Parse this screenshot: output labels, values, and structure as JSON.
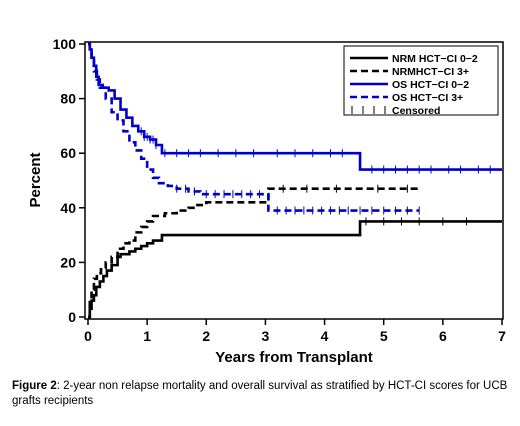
{
  "chart_data": {
    "type": "line",
    "xlabel": "Years from Transplant",
    "ylabel": "Percent",
    "xlim": [
      0,
      7
    ],
    "ylim": [
      0,
      100
    ],
    "xticks": [
      "0",
      "1",
      "2",
      "3",
      "4",
      "5",
      "6",
      "7"
    ],
    "yticks": [
      "0",
      "20",
      "40",
      "60",
      "80",
      "100"
    ],
    "grid": false,
    "legend_position": "top-right",
    "legend": [
      {
        "label": "NRM HCT−CI 0−2",
        "color": "#000000",
        "dash": "solid"
      },
      {
        "label": "NRMHCT−CI 3+",
        "color": "#000000",
        "dash": "dashed"
      },
      {
        "label": "OS HCT−CI 0−2",
        "color": "#0000cc",
        "dash": "solid"
      },
      {
        "label": "OS HCT−CI 3+",
        "color": "#0000cc",
        "dash": "dashed"
      },
      {
        "label": "Censored",
        "color": "#000000",
        "dash": "ticks"
      }
    ],
    "series": [
      {
        "name": "NRM HCT−CI 0−2",
        "color": "#000000",
        "dash": "solid",
        "x": [
          0,
          0.03,
          0.06,
          0.1,
          0.14,
          0.2,
          0.26,
          0.32,
          0.4,
          0.5,
          0.55,
          0.7,
          0.8,
          0.9,
          1.0,
          1.1,
          1.25,
          3.0,
          4.55,
          4.6,
          7.0
        ],
        "y": [
          0,
          3,
          6,
          8,
          11,
          13,
          15,
          17,
          19,
          22,
          23,
          24,
          25,
          26,
          27,
          28,
          30,
          30,
          30,
          35,
          35
        ]
      },
      {
        "name": "NRMHCT−CI 3+",
        "color": "#000000",
        "dash": "dashed",
        "x": [
          0,
          0.03,
          0.06,
          0.1,
          0.15,
          0.22,
          0.3,
          0.4,
          0.5,
          0.6,
          0.7,
          0.8,
          0.9,
          1.0,
          1.1,
          1.3,
          1.5,
          1.7,
          1.85,
          2.0,
          3.05,
          5.6
        ],
        "y": [
          0,
          6,
          10,
          14,
          16,
          18,
          20,
          22,
          25,
          27,
          28,
          31,
          33,
          35,
          37,
          38,
          39,
          40,
          41,
          42,
          47,
          47
        ]
      },
      {
        "name": "OS HCT−CI 0−2",
        "color": "#0000cc",
        "dash": "solid",
        "x": [
          0,
          0.03,
          0.06,
          0.1,
          0.14,
          0.18,
          0.25,
          0.35,
          0.45,
          0.55,
          0.65,
          0.75,
          0.85,
          0.95,
          1.05,
          1.15,
          1.25,
          4.55,
          4.6,
          7.0
        ],
        "y": [
          100,
          98,
          95,
          92,
          88,
          85,
          84,
          83,
          80,
          76,
          73,
          70,
          68,
          66,
          65,
          63,
          60,
          60,
          54,
          54
        ]
      },
      {
        "name": "OS HCT−CI 3+",
        "color": "#0000cc",
        "dash": "dashed",
        "x": [
          0,
          0.03,
          0.06,
          0.1,
          0.15,
          0.2,
          0.3,
          0.4,
          0.5,
          0.6,
          0.7,
          0.8,
          0.9,
          1.0,
          1.1,
          1.2,
          1.35,
          1.5,
          1.7,
          1.9,
          3.0,
          3.05,
          5.6
        ],
        "y": [
          100,
          97,
          94,
          90,
          87,
          84,
          80,
          75,
          72,
          68,
          64,
          61,
          58,
          54,
          51,
          49,
          48,
          47,
          46,
          45,
          45,
          39,
          39
        ]
      }
    ],
    "censored": [
      {
        "series": 0,
        "x": [
          4.7,
          5.0,
          5.3,
          5.6,
          6.0,
          6.4
        ]
      },
      {
        "series": 1,
        "x": [
          3.3,
          3.7,
          4.2,
          4.9,
          5.4
        ]
      },
      {
        "series": 2,
        "x": [
          0.9,
          0.95,
          1.0,
          1.05,
          1.1,
          1.15,
          1.3,
          1.5,
          1.7,
          1.9,
          2.2,
          2.5,
          2.8,
          3.2,
          3.5,
          3.8,
          4.1,
          4.3,
          4.8,
          5.0,
          5.2,
          5.4,
          5.6,
          5.8,
          6.1,
          6.3,
          6.6,
          6.8
        ]
      },
      {
        "series": 3,
        "x": [
          1.5,
          1.65,
          1.8,
          2.0,
          2.15,
          2.3,
          2.45,
          2.6,
          2.75,
          2.9,
          3.2,
          3.35,
          3.5,
          3.65,
          3.8,
          3.95,
          4.1,
          4.25,
          4.4,
          4.6,
          4.8,
          5.0,
          5.2,
          5.4,
          5.6
        ]
      }
    ]
  },
  "caption": {
    "label": "Figure 2",
    "text": ": 2-year non relapse mortality and overall survival as stratified by HCT-CI scores for UCB grafts recipients"
  }
}
